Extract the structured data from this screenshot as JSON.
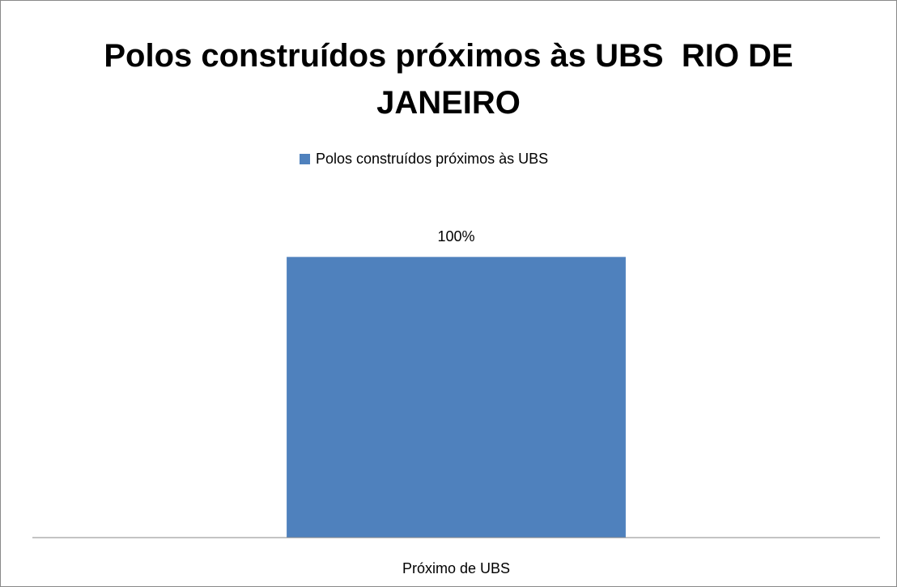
{
  "chart_data": {
    "type": "bar",
    "title": "Polos construídos próximos às UBS  RIO DE JANEIRO",
    "categories": [
      "Próximo de UBS"
    ],
    "series": [
      {
        "name": "Polos construídos próximos às UBS",
        "color": "#4f81bd",
        "values": [
          100
        ],
        "value_labels": [
          "100%"
        ]
      }
    ],
    "ylim": [
      0,
      120
    ],
    "legend": "top"
  }
}
